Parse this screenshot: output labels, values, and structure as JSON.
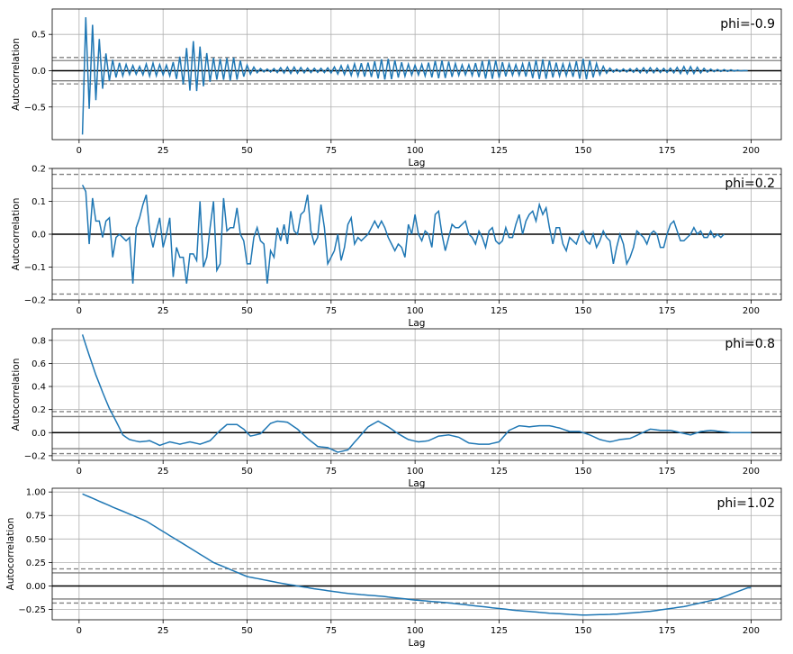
{
  "chart_data": [
    {
      "type": "line",
      "annotation": "phi=-0.9",
      "xlabel": "Lag",
      "ylabel": "Autocorrelation",
      "xlim": [
        -8,
        209
      ],
      "ylim": [
        -0.95,
        0.85
      ],
      "xticks": [
        0,
        25,
        50,
        75,
        100,
        125,
        150,
        175,
        200
      ],
      "yticks": [
        -0.5,
        0.0,
        0.5
      ],
      "ytick_labels": [
        "−0.5",
        "0.0",
        "0.5"
      ],
      "grid": true,
      "band_solid": 0.139,
      "band_dashed": 0.182,
      "series": [
        {
          "kind": "alt",
          "points": [
            [
              1,
              -0.88
            ],
            [
              2,
              0.78
            ],
            [
              5,
              0.56
            ],
            [
              8,
              0.33
            ],
            [
              12,
              0.19
            ],
            [
              15,
              0.09
            ],
            [
              18,
              0.06
            ],
            [
              22,
              0.13
            ],
            [
              26,
              0.14
            ],
            [
              30,
              0.24
            ],
            [
              34,
              0.41
            ],
            [
              38,
              0.35
            ],
            [
              42,
              0.28
            ],
            [
              46,
              0.2
            ],
            [
              50,
              0.08
            ],
            [
              55,
              0.04
            ],
            [
              60,
              0.05
            ],
            [
              65,
              0.05
            ],
            [
              70,
              0.06
            ],
            [
              75,
              0.05
            ],
            [
              80,
              0.08
            ],
            [
              85,
              0.2
            ],
            [
              90,
              0.18
            ],
            [
              95,
              0.14
            ],
            [
              100,
              0.14
            ],
            [
              105,
              0.14
            ],
            [
              110,
              0.14
            ],
            [
              115,
              0.14
            ],
            [
              120,
              0.15
            ],
            [
              125,
              0.15
            ],
            [
              130,
              0.15
            ],
            [
              135,
              0.15
            ],
            [
              140,
              0.16
            ],
            [
              145,
              0.17
            ],
            [
              150,
              0.18
            ],
            [
              155,
              0.09
            ],
            [
              160,
              0.04
            ],
            [
              165,
              0.03
            ],
            [
              170,
              0.05
            ],
            [
              175,
              0.06
            ],
            [
              180,
              0.06
            ],
            [
              185,
              0.05
            ],
            [
              190,
              0.03
            ],
            [
              195,
              0.01
            ],
            [
              199,
              0.0
            ]
          ]
        }
      ]
    },
    {
      "type": "line",
      "annotation": "phi=0.2",
      "xlabel": "Lag",
      "ylabel": "Autocorrelation",
      "xlim": [
        -8,
        209
      ],
      "ylim": [
        -0.2,
        0.2
      ],
      "xticks": [
        0,
        25,
        50,
        75,
        100,
        125,
        150,
        175,
        200
      ],
      "yticks": [
        -0.2,
        -0.1,
        0.0,
        0.1,
        0.2
      ],
      "ytick_labels": [
        "−0.2",
        "−0.1",
        "0.0",
        "0.1",
        "0.2"
      ],
      "grid": true,
      "band_solid": 0.139,
      "band_dashed": 0.182,
      "series": [
        {
          "kind": "direct",
          "values": [
            0.15,
            0.13,
            -0.03,
            0.11,
            0.04,
            0.04,
            -0.01,
            0.04,
            0.05,
            -0.07,
            -0.01,
            0.0,
            -0.01,
            -0.02,
            -0.01,
            -0.15,
            0.02,
            0.05,
            0.09,
            0.12,
            0.01,
            -0.04,
            0.01,
            0.05,
            -0.04,
            0.0,
            0.05,
            -0.13,
            -0.04,
            -0.07,
            -0.07,
            -0.15,
            -0.06,
            -0.06,
            -0.08,
            0.1,
            -0.1,
            -0.07,
            0.02,
            0.1,
            -0.11,
            -0.09,
            0.11,
            0.01,
            0.02,
            0.02,
            0.08,
            0.0,
            -0.02,
            -0.09,
            -0.09,
            -0.01,
            0.02,
            -0.02,
            -0.03,
            -0.15,
            -0.05,
            -0.07,
            0.02,
            -0.02,
            0.03,
            -0.03,
            0.07,
            0.01,
            0.0,
            0.06,
            0.07,
            0.12,
            0.01,
            -0.03,
            -0.01,
            0.09,
            0.02,
            -0.09,
            -0.07,
            -0.05,
            0.0,
            -0.08,
            -0.04,
            0.03,
            0.05,
            -0.03,
            -0.01,
            -0.02,
            -0.01,
            0.0,
            0.02,
            0.04,
            0.02,
            0.04,
            0.02,
            -0.01,
            -0.03,
            -0.05,
            -0.03,
            -0.04,
            -0.07,
            0.03,
            0.0,
            0.06,
            0.0,
            -0.02,
            0.01,
            0.0,
            -0.04,
            0.06,
            0.07,
            0.0,
            -0.05,
            -0.01,
            0.03,
            0.02,
            0.02,
            0.03,
            0.04,
            0.0,
            -0.01,
            -0.03,
            0.01,
            -0.01,
            -0.04,
            0.01,
            0.02,
            -0.02,
            -0.03,
            -0.02,
            0.02,
            -0.01,
            -0.01,
            0.03,
            0.06,
            0.0,
            0.04,
            0.06,
            0.07,
            0.04,
            0.09,
            0.06,
            0.08,
            0.02,
            -0.03,
            0.02,
            0.02,
            -0.03,
            -0.05,
            -0.01,
            -0.02,
            -0.03,
            0.0,
            0.01,
            -0.02,
            -0.03,
            0.0,
            -0.04,
            -0.02,
            0.01,
            -0.01,
            -0.02,
            -0.09,
            -0.04,
            0.0,
            -0.03,
            -0.09,
            -0.07,
            -0.04,
            0.01,
            0.0,
            -0.01,
            -0.03,
            0.0,
            0.01,
            0.0,
            -0.04,
            -0.04,
            0.0,
            0.03,
            0.04,
            0.01,
            -0.02,
            -0.02,
            -0.01,
            0.0,
            0.02,
            0.0,
            0.01,
            -0.01,
            -0.01,
            0.01,
            -0.01,
            0.0,
            -0.01,
            0.0
          ]
        }
      ]
    },
    {
      "type": "line",
      "annotation": "phi=0.8",
      "xlabel": "Lag",
      "ylabel": "Autocorrelation",
      "xlim": [
        -8,
        209
      ],
      "ylim": [
        -0.24,
        0.9
      ],
      "xticks": [
        0,
        25,
        50,
        75,
        100,
        125,
        150,
        175,
        200
      ],
      "yticks": [
        -0.2,
        0.0,
        0.2,
        0.4,
        0.6,
        0.8
      ],
      "ytick_labels": [
        "−0.2",
        "0.0",
        "0.2",
        "0.4",
        "0.6",
        "0.8"
      ],
      "grid": true,
      "band_solid": 0.139,
      "band_dashed": 0.182,
      "series": [
        {
          "kind": "smooth",
          "points": [
            [
              1,
              0.85
            ],
            [
              3,
              0.67
            ],
            [
              5,
              0.5
            ],
            [
              7,
              0.35
            ],
            [
              9,
              0.21
            ],
            [
              11,
              0.1
            ],
            [
              13,
              -0.02
            ],
            [
              15,
              -0.06
            ],
            [
              18,
              -0.08
            ],
            [
              21,
              -0.07
            ],
            [
              24,
              -0.11
            ],
            [
              27,
              -0.08
            ],
            [
              30,
              -0.1
            ],
            [
              33,
              -0.08
            ],
            [
              36,
              -0.1
            ],
            [
              39,
              -0.07
            ],
            [
              42,
              0.02
            ],
            [
              44,
              0.07
            ],
            [
              47,
              0.07
            ],
            [
              49,
              0.03
            ],
            [
              51,
              -0.03
            ],
            [
              54,
              -0.01
            ],
            [
              57,
              0.08
            ],
            [
              59,
              0.1
            ],
            [
              62,
              0.09
            ],
            [
              65,
              0.03
            ],
            [
              68,
              -0.05
            ],
            [
              71,
              -0.12
            ],
            [
              74,
              -0.13
            ],
            [
              77,
              -0.17
            ],
            [
              80,
              -0.15
            ],
            [
              83,
              -0.05
            ],
            [
              86,
              0.05
            ],
            [
              89,
              0.1
            ],
            [
              92,
              0.05
            ],
            [
              95,
              -0.01
            ],
            [
              98,
              -0.06
            ],
            [
              101,
              -0.08
            ],
            [
              104,
              -0.07
            ],
            [
              107,
              -0.03
            ],
            [
              110,
              -0.02
            ],
            [
              113,
              -0.04
            ],
            [
              116,
              -0.09
            ],
            [
              119,
              -0.1
            ],
            [
              122,
              -0.1
            ],
            [
              125,
              -0.08
            ],
            [
              128,
              0.02
            ],
            [
              131,
              0.06
            ],
            [
              134,
              0.05
            ],
            [
              137,
              0.06
            ],
            [
              140,
              0.06
            ],
            [
              143,
              0.04
            ],
            [
              146,
              0.01
            ],
            [
              149,
              0.01
            ],
            [
              152,
              -0.02
            ],
            [
              155,
              -0.06
            ],
            [
              158,
              -0.08
            ],
            [
              161,
              -0.06
            ],
            [
              164,
              -0.05
            ],
            [
              167,
              -0.01
            ],
            [
              170,
              0.03
            ],
            [
              173,
              0.02
            ],
            [
              176,
              0.02
            ],
            [
              179,
              0.0
            ],
            [
              182,
              -0.02
            ],
            [
              185,
              0.01
            ],
            [
              188,
              0.02
            ],
            [
              191,
              0.01
            ],
            [
              194,
              0.0
            ],
            [
              197,
              0.0
            ],
            [
              200,
              0.0
            ]
          ]
        }
      ]
    },
    {
      "type": "line",
      "annotation": "phi=1.02",
      "xlabel": "Lag",
      "ylabel": "Autocorrelation",
      "xlim": [
        -8,
        209
      ],
      "ylim": [
        -0.36,
        1.04
      ],
      "xticks": [
        0,
        25,
        50,
        75,
        100,
        125,
        150,
        175,
        200
      ],
      "yticks": [
        -0.25,
        0.0,
        0.25,
        0.5,
        0.75,
        1.0
      ],
      "ytick_labels": [
        "−0.25",
        "0.00",
        "0.25",
        "0.50",
        "0.75",
        "1.00"
      ],
      "grid": true,
      "band_solid": 0.139,
      "band_dashed": 0.182,
      "series": [
        {
          "kind": "smooth",
          "points": [
            [
              1,
              0.98
            ],
            [
              10,
              0.84
            ],
            [
              20,
              0.69
            ],
            [
              30,
              0.47
            ],
            [
              40,
              0.25
            ],
            [
              50,
              0.1
            ],
            [
              60,
              0.03
            ],
            [
              70,
              -0.03
            ],
            [
              80,
              -0.08
            ],
            [
              90,
              -0.11
            ],
            [
              100,
              -0.15
            ],
            [
              110,
              -0.18
            ],
            [
              120,
              -0.22
            ],
            [
              130,
              -0.26
            ],
            [
              140,
              -0.29
            ],
            [
              150,
              -0.31
            ],
            [
              160,
              -0.3
            ],
            [
              170,
              -0.27
            ],
            [
              180,
              -0.22
            ],
            [
              190,
              -0.14
            ],
            [
              199,
              -0.02
            ]
          ]
        }
      ]
    }
  ]
}
